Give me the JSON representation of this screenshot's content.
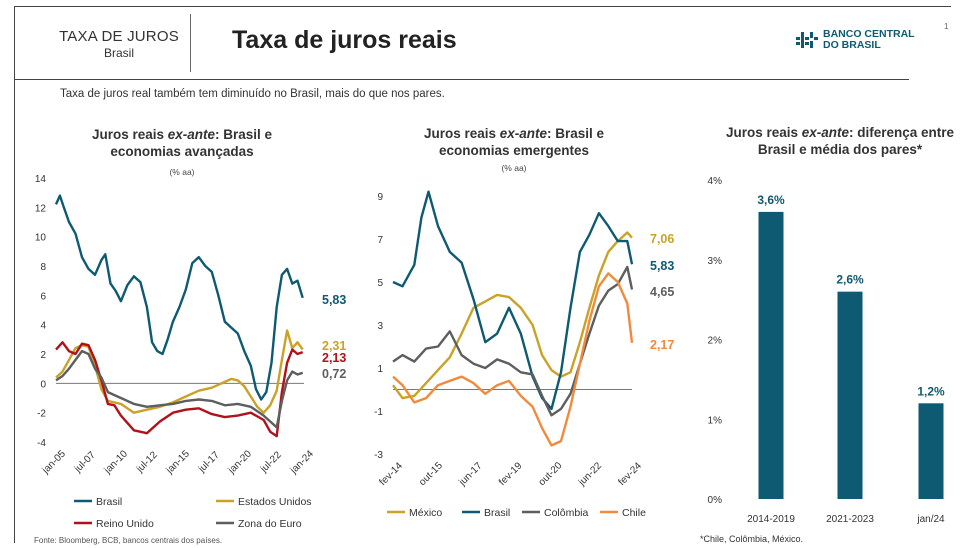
{
  "header": {
    "section_title": "TAXA DE JUROS",
    "section_sub": "Brasil",
    "title": "Taxa de juros reais",
    "logo_line1": "BANCO CENTRAL",
    "logo_line2": "DO BRASIL",
    "page_number": "1"
  },
  "subtitle": "Taxa de juros real também tem diminuído no Brasil, mais do que nos pares.",
  "source": "Fonte: Bloomberg, BCB, bancos centrais dos países.",
  "footnote": "*Chile, Colômbia, México.",
  "colors": {
    "brasil": "#0e5a73",
    "eua": "#c9a227",
    "reino_unido": "#b0121b",
    "zona_euro": "#5e5e5e",
    "mexico": "#c9a227",
    "colombia": "#5e5e5e",
    "chile": "#f08a3c"
  },
  "chart_data": [
    {
      "type": "line",
      "title_parts": [
        "Juros reais ",
        "ex-ante",
        ": Brasil e"
      ],
      "title_line2": "economias avançadas",
      "unit": "(% aa)",
      "ylim": [
        -4,
        14
      ],
      "yticks": [
        "14",
        "12",
        "10",
        "8",
        "6",
        "4",
        "2",
        "0",
        "-2",
        "-4"
      ],
      "xticks": [
        "jan-05",
        "jul-07",
        "jan-10",
        "jul-12",
        "jan-15",
        "jul-17",
        "jan-20",
        "jul-22",
        "jan-24"
      ],
      "xlim": [
        2005.0,
        2024.1
      ],
      "series": [
        {
          "name": "Brasil",
          "color_key": "brasil",
          "end_label": "5,83",
          "x": [
            2005.0,
            2005.3,
            2005.6,
            2006.0,
            2006.5,
            2007.0,
            2007.5,
            2008.0,
            2008.5,
            2008.8,
            2009.2,
            2009.6,
            2010.0,
            2010.5,
            2011.0,
            2011.5,
            2012.0,
            2012.4,
            2012.8,
            2013.2,
            2013.6,
            2014.0,
            2014.5,
            2015.0,
            2015.5,
            2016.0,
            2016.5,
            2017.0,
            2017.5,
            2018.0,
            2018.5,
            2019.0,
            2019.5,
            2020.0,
            2020.4,
            2020.8,
            2021.2,
            2021.6,
            2022.0,
            2022.4,
            2022.8,
            2023.2,
            2023.6,
            2024.0
          ],
          "y": [
            12.2,
            12.8,
            12.0,
            11.0,
            10.2,
            8.6,
            7.8,
            7.4,
            8.4,
            8.8,
            6.8,
            6.3,
            5.6,
            6.7,
            7.3,
            6.9,
            5.2,
            2.8,
            2.2,
            2.0,
            3.0,
            4.2,
            5.2,
            6.4,
            8.2,
            8.6,
            8.0,
            7.6,
            6.0,
            4.2,
            3.8,
            3.4,
            2.2,
            1.2,
            -0.4,
            -1.1,
            -0.6,
            1.4,
            5.2,
            7.4,
            7.8,
            6.8,
            7.0,
            5.83
          ]
        },
        {
          "name": "Estados Unidos",
          "color_key": "eua",
          "end_label": "2,31",
          "x": [
            2005.0,
            2005.5,
            2006.0,
            2006.5,
            2007.0,
            2007.5,
            2008.0,
            2008.5,
            2009.0,
            2009.5,
            2010.0,
            2011.0,
            2012.0,
            2013.0,
            2014.0,
            2015.0,
            2016.0,
            2017.0,
            2018.0,
            2018.5,
            2019.0,
            2019.5,
            2020.0,
            2020.5,
            2021.0,
            2021.5,
            2022.0,
            2022.4,
            2022.8,
            2023.2,
            2023.6,
            2024.0
          ],
          "y": [
            0.4,
            0.8,
            1.6,
            2.4,
            2.6,
            2.5,
            1.2,
            -0.4,
            -1.2,
            -1.3,
            -1.4,
            -2.0,
            -1.8,
            -1.6,
            -1.3,
            -0.9,
            -0.5,
            -0.3,
            0.1,
            0.3,
            0.2,
            -0.2,
            -0.9,
            -1.6,
            -2.0,
            -1.5,
            -0.5,
            1.6,
            3.6,
            2.4,
            2.8,
            2.31
          ]
        },
        {
          "name": "Reino Unido",
          "color_key": "reino_unido",
          "end_label": "2,13",
          "x": [
            2005.0,
            2005.5,
            2006.0,
            2006.5,
            2007.0,
            2007.5,
            2008.0,
            2008.5,
            2009.0,
            2009.5,
            2010.0,
            2011.0,
            2012.0,
            2013.0,
            2014.0,
            2015.0,
            2016.0,
            2017.0,
            2018.0,
            2019.0,
            2020.0,
            2021.0,
            2021.5,
            2022.0,
            2022.4,
            2022.8,
            2023.2,
            2023.6,
            2024.0
          ],
          "y": [
            2.3,
            2.8,
            2.2,
            2.0,
            2.7,
            2.6,
            1.6,
            0.2,
            -1.4,
            -1.5,
            -2.2,
            -3.2,
            -3.4,
            -2.6,
            -2.0,
            -1.8,
            -1.7,
            -2.1,
            -2.3,
            -2.2,
            -2.0,
            -2.5,
            -3.3,
            -3.6,
            -0.6,
            1.4,
            2.3,
            2.0,
            2.13
          ]
        },
        {
          "name": "Zona do Euro",
          "color_key": "zona_euro",
          "end_label": "0,72",
          "x": [
            2005.0,
            2005.5,
            2006.0,
            2006.5,
            2007.0,
            2007.5,
            2008.0,
            2008.5,
            2009.0,
            2009.5,
            2010.0,
            2011.0,
            2012.0,
            2013.0,
            2014.0,
            2015.0,
            2016.0,
            2017.0,
            2018.0,
            2019.0,
            2020.0,
            2021.0,
            2021.5,
            2022.0,
            2022.4,
            2022.8,
            2023.2,
            2023.6,
            2024.0
          ],
          "y": [
            0.2,
            0.5,
            1.0,
            1.6,
            2.2,
            2.0,
            1.0,
            0.4,
            -0.6,
            -0.8,
            -1.0,
            -1.4,
            -1.6,
            -1.5,
            -1.4,
            -1.2,
            -1.1,
            -1.2,
            -1.5,
            -1.4,
            -1.6,
            -2.2,
            -2.6,
            -3.0,
            -1.2,
            0.2,
            0.8,
            0.6,
            0.72
          ]
        }
      ]
    },
    {
      "type": "line",
      "title_parts": [
        "Juros reais ",
        "ex-ante",
        ": Brasil e"
      ],
      "title_line2": "economias emergentes",
      "unit": "(% aa)",
      "ylim": [
        -3,
        9
      ],
      "yticks": [
        "9",
        "7",
        "5",
        "3",
        "1",
        "-1",
        "-3"
      ],
      "xticks": [
        "fev-14",
        "out-15",
        "jun-17",
        "fev-19",
        "out-20",
        "jun-22",
        "fev-24"
      ],
      "xlim": [
        2014.1,
        2024.2
      ],
      "series": [
        {
          "name": "México",
          "color_key": "mexico",
          "end_label": "7,06",
          "x": [
            2014.1,
            2014.5,
            2015.0,
            2015.5,
            2016.0,
            2016.5,
            2017.0,
            2017.5,
            2018.0,
            2018.5,
            2019.0,
            2019.5,
            2020.0,
            2020.4,
            2020.8,
            2021.2,
            2021.6,
            2022.0,
            2022.4,
            2022.8,
            2023.2,
            2023.6,
            2024.0,
            2024.2
          ],
          "y": [
            0.2,
            -0.4,
            -0.3,
            0.3,
            0.9,
            1.5,
            2.6,
            3.8,
            4.1,
            4.4,
            4.3,
            3.8,
            3.0,
            1.6,
            0.9,
            0.6,
            0.8,
            2.2,
            3.8,
            5.3,
            6.4,
            6.9,
            7.3,
            7.06
          ]
        },
        {
          "name": "Brasil",
          "color_key": "brasil",
          "end_label": "5,83",
          "x": [
            2014.1,
            2014.5,
            2015.0,
            2015.3,
            2015.6,
            2016.0,
            2016.5,
            2017.0,
            2017.5,
            2018.0,
            2018.5,
            2019.0,
            2019.5,
            2020.0,
            2020.4,
            2020.8,
            2021.2,
            2021.6,
            2022.0,
            2022.4,
            2022.8,
            2023.2,
            2023.6,
            2024.0,
            2024.2
          ],
          "y": [
            5.0,
            4.8,
            5.8,
            8.0,
            9.2,
            7.6,
            6.4,
            5.9,
            4.2,
            2.2,
            2.6,
            3.8,
            2.6,
            0.6,
            -0.4,
            -0.9,
            0.8,
            3.8,
            6.4,
            7.2,
            8.2,
            7.6,
            6.9,
            6.9,
            5.83
          ]
        },
        {
          "name": "Colômbia",
          "color_key": "colombia",
          "end_label": "4,65",
          "x": [
            2014.1,
            2014.5,
            2015.0,
            2015.5,
            2016.0,
            2016.5,
            2017.0,
            2017.5,
            2018.0,
            2018.5,
            2019.0,
            2019.5,
            2020.0,
            2020.4,
            2020.8,
            2021.2,
            2021.6,
            2022.0,
            2022.4,
            2022.8,
            2023.2,
            2023.6,
            2024.0,
            2024.2
          ],
          "y": [
            1.3,
            1.6,
            1.3,
            1.9,
            2.0,
            2.7,
            1.6,
            1.2,
            1.0,
            1.4,
            1.2,
            0.8,
            0.7,
            -0.3,
            -1.2,
            -0.9,
            -0.2,
            1.2,
            2.6,
            3.9,
            4.6,
            4.9,
            5.7,
            4.65
          ]
        },
        {
          "name": "Chile",
          "color_key": "chile",
          "end_label": "2,17",
          "x": [
            2014.1,
            2014.5,
            2015.0,
            2015.5,
            2016.0,
            2016.5,
            2017.0,
            2017.5,
            2018.0,
            2018.5,
            2019.0,
            2019.5,
            2020.0,
            2020.4,
            2020.8,
            2021.2,
            2021.6,
            2022.0,
            2022.4,
            2022.8,
            2023.2,
            2023.6,
            2024.0,
            2024.2
          ],
          "y": [
            0.6,
            0.2,
            -0.6,
            -0.4,
            0.2,
            0.4,
            0.6,
            0.3,
            -0.2,
            0.2,
            0.4,
            -0.3,
            -0.8,
            -1.8,
            -2.6,
            -2.4,
            -0.8,
            1.2,
            3.2,
            4.8,
            5.4,
            5.0,
            4.0,
            2.17
          ]
        }
      ]
    },
    {
      "type": "bar",
      "title_parts": [
        "Juros  reais ",
        "ex-ante",
        ":  diferença entre"
      ],
      "title_line2": "Brasil e média dos pares*",
      "categories": [
        "2014-2019",
        "2021-2023",
        "jan/24"
      ],
      "values": [
        3.6,
        2.6,
        1.2
      ],
      "value_labels": [
        "3,6%",
        "2,6%",
        "1,2%"
      ],
      "ylim": [
        0,
        4
      ],
      "yticks": [
        "4%",
        "3%",
        "2%",
        "1%",
        "0%"
      ],
      "color_key": "brasil"
    }
  ]
}
